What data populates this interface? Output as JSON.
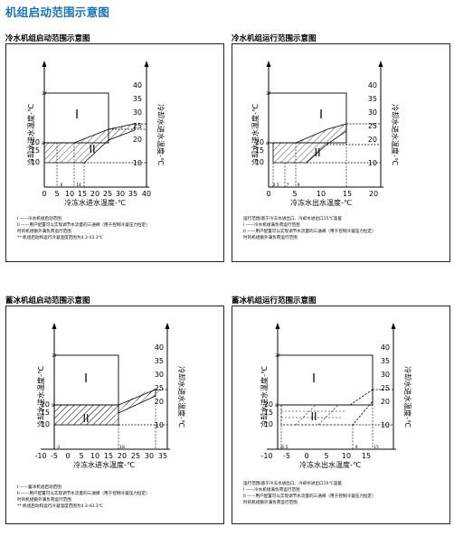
{
  "page_title": "机组启动范围示意图",
  "diagrams": [
    {
      "title": "冷水机组启动范围示意图",
      "xlabel": "冷冻水进水温度-℃",
      "ylabel": "冷却水进水温度-℃",
      "x_ticks": [
        "0",
        "5",
        "10",
        "15",
        "20",
        "25",
        "30",
        "35",
        "40"
      ],
      "x_minor": [
        "6",
        "14"
      ],
      "y_left_ticks": [
        "10",
        "15",
        "20"
      ],
      "y_left_minor": [
        "8",
        "37"
      ],
      "y_right_ticks": [
        "10",
        "15",
        "20",
        "25",
        "30",
        "35",
        "40"
      ],
      "region_I": "I",
      "region_II": "II",
      "notes": [
        "I  ——冷水机组启动范围",
        "II ——用户配置可以实现调节水流量的三通阀（用于控制冷凝压力恒定）",
        "    时的机组额外满负荷运行范围",
        "**:机组启动和运行冷凝温度范围为4.3-43.3℃"
      ]
    },
    {
      "title": "冷水机组运行范围示意图",
      "xlabel": "冷冻水出水温度-℃",
      "ylabel": "冷却水进水温度-℃",
      "x_ticks": [
        "0",
        "5",
        "10",
        "15",
        "20"
      ],
      "x_minor": [
        "4.5",
        "7",
        "9"
      ],
      "y_left_ticks": [
        "10",
        "15",
        "20"
      ],
      "y_left_minor": [
        "8",
        "37"
      ],
      "y_right_ticks": [
        "10",
        "15",
        "20",
        "25",
        "30",
        "35",
        "40"
      ],
      "region_I": "I",
      "region_II": "II",
      "notes": [
        "运行范围I基于冷冻水进出口、冷却水进出口15℃温差",
        "I  ——冷水机组满负荷运行范围",
        "II ——用户配置可以实现调节水流量的三通阀（用于控制冷凝压力恒定）",
        "    时的机组额外满负荷运行范围"
      ]
    },
    {
      "title": "蓄冰机组启动范围示意图",
      "xlabel": "冷冻水进水温度-℃",
      "ylabel": "冷却水进水温度-℃",
      "x_ticks": [
        "-10",
        "-5",
        "0",
        "5",
        "10",
        "15",
        "20",
        "25",
        "30",
        "35"
      ],
      "x_minor": [
        "-3",
        "18"
      ],
      "y_left_ticks": [
        "10",
        "15",
        "20"
      ],
      "y_left_minor": [
        "8",
        "37"
      ],
      "y_right_ticks": [
        "10",
        "15",
        "20",
        "25",
        "30",
        "35",
        "40"
      ],
      "region_I": "I",
      "region_II": "II",
      "notes": [
        "I  ——蓄冰机组启动范围",
        "II ——用户配置可以实现调节水流量的三通阀（用于控制冷凝压力恒定）",
        "    时的机组额外满负荷运行范围",
        "**:机组启动和运行冷凝温度范围为4.3-43.3℃"
      ]
    },
    {
      "title": "蓄冰机组运行范围示意图",
      "xlabel": "冷冻水出水温度-℃",
      "ylabel": "冷却水进水温度-℃",
      "x_ticks": [
        "-10",
        "-5",
        "0",
        "5",
        "10",
        "15"
      ],
      "x_minor": [
        "-6.5",
        "9",
        "15"
      ],
      "y_left_ticks": [
        "10",
        "15",
        "20"
      ],
      "y_left_minor": [
        "8",
        "37"
      ],
      "y_right_ticks": [
        "10",
        "15",
        "20",
        "25",
        "30",
        "35",
        "40"
      ],
      "region_I": "I",
      "region_II": "II",
      "notes": [
        "运行范围I基于冷冻水进出口、冷却水进出口15℃温差",
        "I  ——冷水机组满负荷运行范围",
        "II ——用户配置可以实现调节水流量的三通阀（用于控制冷凝压力恒定）",
        "    时的机组额外满负荷运行范围"
      ]
    }
  ]
}
